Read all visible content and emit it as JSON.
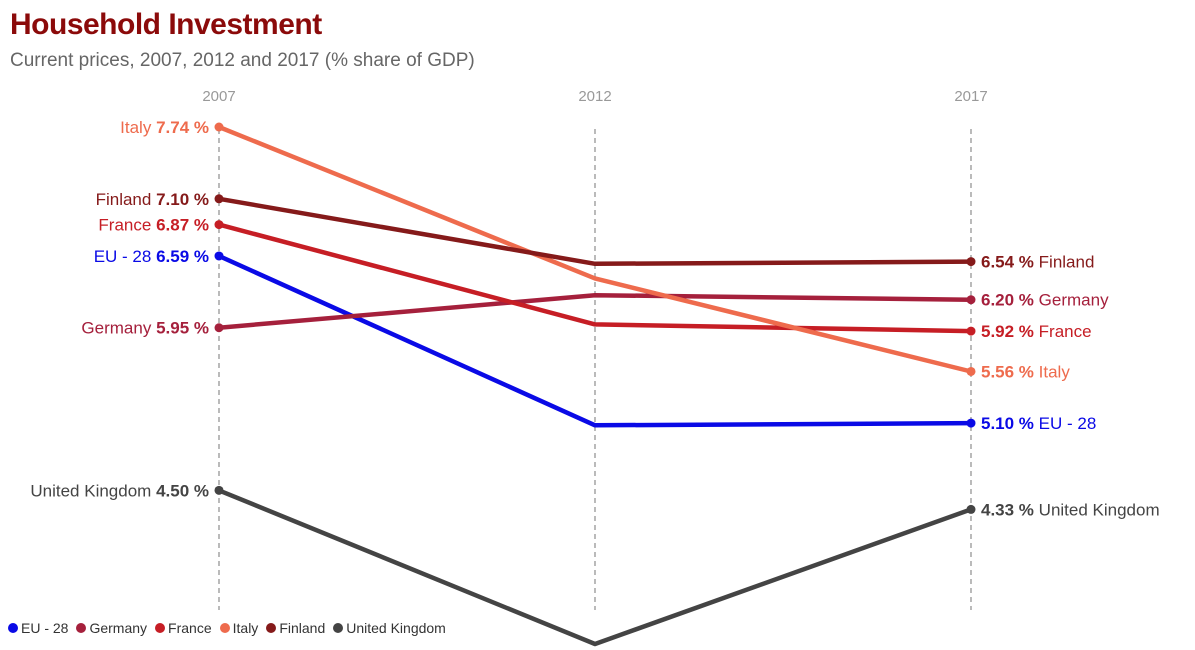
{
  "header": {
    "title": "Household Investment",
    "subtitle": "Current prices, 2007, 2012 and 2017 (% share of GDP)"
  },
  "chart_data": {
    "type": "line",
    "title": "Household Investment",
    "subtitle": "Current prices, 2007, 2012 and 2017 (% share of GDP)",
    "categories": [
      "2007",
      "2012",
      "2017"
    ],
    "unit": "%",
    "grid": false,
    "legend_position": "bottom-left",
    "series": [
      {
        "name": "EU - 28",
        "color": "#0a0ae6",
        "values": [
          6.59,
          5.08,
          5.1
        ],
        "start_label": "6.59 %",
        "end_label": "5.10 %"
      },
      {
        "name": "Germany",
        "color": "#a5203c",
        "values": [
          5.95,
          6.24,
          6.2
        ],
        "start_label": "5.95 %",
        "end_label": "6.20 %"
      },
      {
        "name": "France",
        "color": "#c61e25",
        "values": [
          6.87,
          5.98,
          5.92
        ],
        "start_label": "6.87 %",
        "end_label": "5.92 %"
      },
      {
        "name": "Italy",
        "color": "#ee6b4d",
        "values": [
          7.74,
          6.39,
          5.56
        ],
        "start_label": "7.74 %",
        "end_label": "5.56 %"
      },
      {
        "name": "Finland",
        "color": "#851a1a",
        "values": [
          7.1,
          6.52,
          6.54
        ],
        "start_label": "7.10 %",
        "end_label": "6.54 %"
      },
      {
        "name": "United Kingdom",
        "color": "#444444",
        "values": [
          4.5,
          3.13,
          4.33
        ],
        "start_label": "4.50 %",
        "end_label": "4.33 %"
      }
    ]
  }
}
